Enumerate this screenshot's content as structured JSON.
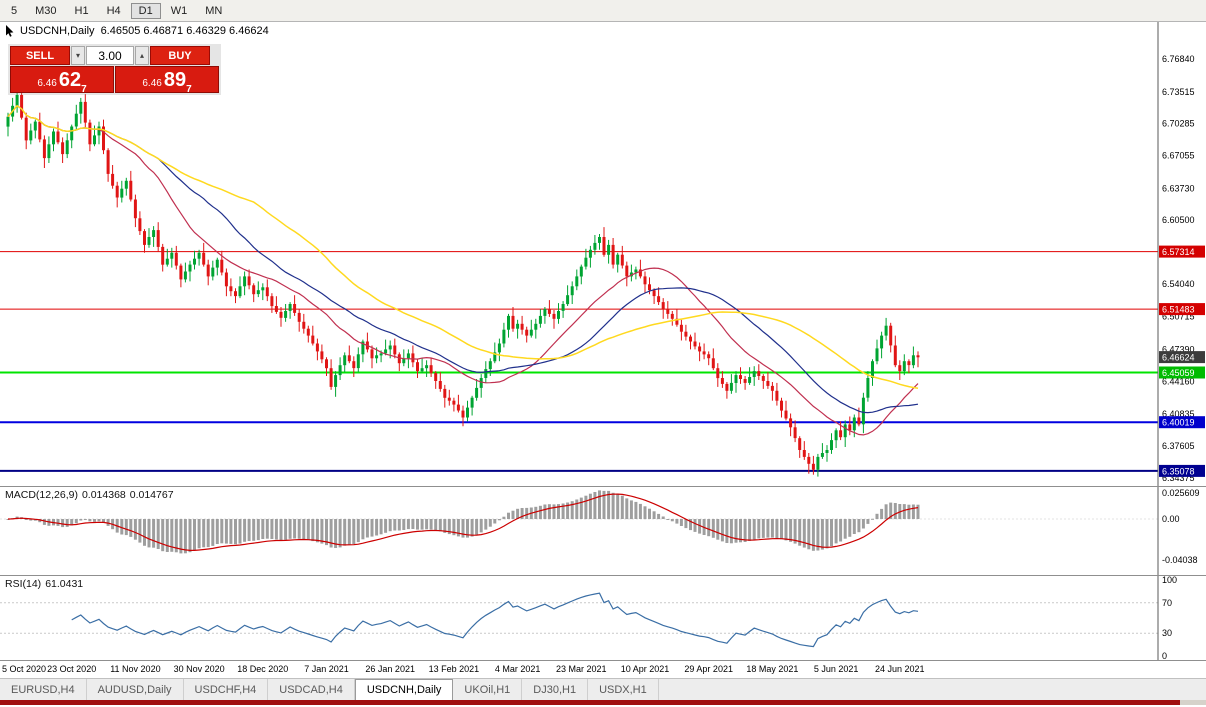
{
  "toolbar": {
    "timeframes": [
      {
        "label": "5",
        "active": false
      },
      {
        "label": "M30",
        "active": false
      },
      {
        "label": "H1",
        "active": false
      },
      {
        "label": "H4",
        "active": false
      },
      {
        "label": "D1",
        "active": true
      },
      {
        "label": "W1",
        "active": false
      },
      {
        "label": "MN",
        "active": false
      }
    ]
  },
  "chart_header": {
    "title": "USDCNH,Daily",
    "ohlc": "6.46505 6.46871 6.46329 6.46624"
  },
  "trade_panel": {
    "sell_label": "SELL",
    "buy_label": "BUY",
    "volume": "3.00",
    "sell_price_small": "6.46",
    "sell_price_big": "62",
    "sell_price_sup": "7",
    "buy_price_small": "6.46",
    "buy_price_big": "89",
    "buy_price_sup": "7"
  },
  "price_axis": {
    "ticks": [
      "6.76840",
      "6.73515",
      "6.70285",
      "6.67055",
      "6.63730",
      "6.60500",
      "6.57270",
      "6.54040",
      "6.50715",
      "6.47390",
      "6.44160",
      "6.40835",
      "6.37605",
      "6.34375"
    ]
  },
  "levels": [
    {
      "label": "6.57314",
      "price": 6.57314,
      "color": "#e00000",
      "badge": "#d40000",
      "width": 1
    },
    {
      "label": "6.51483",
      "price": 6.51483,
      "color": "#e00000",
      "badge": "#d40000",
      "width": 1
    },
    {
      "label": "6.45059",
      "price": 6.45059,
      "color": "#00e400",
      "badge": "#00bb00",
      "width": 2
    },
    {
      "label": "6.40019",
      "price": 6.40019,
      "color": "#0000e0",
      "badge": "#0000cc",
      "width": 2
    },
    {
      "label": "6.35078",
      "price": 6.35078,
      "color": "#000085",
      "badge": "#000090",
      "width": 2
    }
  ],
  "current_price": {
    "label": "6.46624",
    "value": 6.46624,
    "badge": "#3c3c3c"
  },
  "macd": {
    "title": "MACD(12,26,9)",
    "value_main": "0.014368",
    "value_signal": "0.014767",
    "ticks": [
      {
        "label": "0.025609",
        "value": 0.025609
      },
      {
        "label": "0.00",
        "value": 0
      },
      {
        "label": "-0.04038",
        "value": -0.04038
      }
    ],
    "range_top": 0.0316,
    "range_bottom": -0.0552
  },
  "rsi": {
    "title": "RSI(14)",
    "value": "61.0431",
    "ticks": [
      {
        "label": "100",
        "value": 100
      },
      {
        "label": "70",
        "value": 70
      },
      {
        "label": "30",
        "value": 30
      },
      {
        "label": "0",
        "value": 0
      }
    ],
    "level_lines": [
      70,
      30
    ]
  },
  "x_axis": {
    "labels": [
      {
        "text": "5 Oct 2020",
        "bar": 0
      },
      {
        "text": "23 Oct 2020",
        "bar": 14
      },
      {
        "text": "11 Nov 2020",
        "bar": 28
      },
      {
        "text": "30 Nov 2020",
        "bar": 42
      },
      {
        "text": "18 Dec 2020",
        "bar": 56
      },
      {
        "text": "7 Jan 2021",
        "bar": 70
      },
      {
        "text": "26 Jan 2021",
        "bar": 84
      },
      {
        "text": "13 Feb 2021",
        "bar": 98
      },
      {
        "text": "4 Mar 2021",
        "bar": 112
      },
      {
        "text": "23 Mar 2021",
        "bar": 126
      },
      {
        "text": "10 Apr 2021",
        "bar": 140
      },
      {
        "text": "29 Apr 2021",
        "bar": 154
      },
      {
        "text": "18 May 2021",
        "bar": 168
      },
      {
        "text": "5 Jun 2021",
        "bar": 182
      },
      {
        "text": "24 Jun 2021",
        "bar": 196
      }
    ]
  },
  "tabs": [
    {
      "label": "EURUSD,H4",
      "active": false
    },
    {
      "label": "AUDUSD,Daily",
      "active": false
    },
    {
      "label": "USDCHF,H4",
      "active": false
    },
    {
      "label": "USDCAD,H4",
      "active": false
    },
    {
      "label": "USDCNH,Daily",
      "active": true
    },
    {
      "label": "UKOil,H1",
      "active": false
    },
    {
      "label": "DJ30,H1",
      "active": false
    },
    {
      "label": "USDX,H1",
      "active": false
    }
  ],
  "colors": {
    "candle_up": "#00a432",
    "candle_down": "#e01515",
    "macd_hist": "#9e9e9e",
    "macd_signal": "#cc0000",
    "rsi_line": "#3a6ea5"
  },
  "chart_data": {
    "type": "candlestick",
    "symbol": "USDCNH",
    "timeframe": "Daily",
    "price_range": {
      "top": 6.806,
      "bottom": 6.3355
    },
    "first_open": 6.7,
    "wick_pattern": [
      0.004,
      0.008,
      0.003,
      0.01,
      0.005,
      0.007,
      0.002,
      0.009
    ],
    "ma": [
      {
        "period": 20,
        "color": "#c03050",
        "width": 1.2
      },
      {
        "period": 34,
        "color": "#20308c",
        "width": 1.2
      },
      {
        "period": 55,
        "color": "#ffd91f",
        "width": 1.5
      }
    ],
    "closes": [
      6.71,
      6.721,
      6.732,
      6.709,
      6.686,
      6.696,
      6.705,
      6.687,
      6.668,
      6.682,
      6.695,
      6.684,
      6.672,
      6.686,
      6.7,
      6.713,
      6.725,
      6.704,
      6.682,
      6.691,
      6.7,
      6.676,
      6.652,
      6.64,
      6.628,
      6.637,
      6.645,
      6.626,
      6.607,
      6.594,
      6.58,
      6.588,
      6.595,
      6.578,
      6.56,
      6.566,
      6.572,
      6.559,
      6.545,
      6.553,
      6.56,
      6.566,
      6.572,
      6.56,
      6.548,
      6.557,
      6.565,
      6.552,
      6.538,
      6.533,
      6.528,
      6.538,
      6.548,
      6.539,
      6.53,
      6.534,
      6.537,
      6.528,
      6.518,
      6.512,
      6.506,
      6.513,
      6.52,
      6.511,
      6.502,
      6.495,
      6.488,
      6.48,
      6.472,
      6.464,
      6.455,
      6.436,
      6.448,
      6.458,
      6.468,
      6.462,
      6.455,
      6.469,
      6.482,
      6.474,
      6.465,
      6.468,
      6.47,
      6.474,
      6.478,
      6.469,
      6.46,
      6.465,
      6.47,
      6.461,
      6.452,
      6.455,
      6.458,
      6.45,
      6.442,
      6.434,
      6.425,
      6.422,
      6.418,
      6.412,
      6.405,
      6.415,
      6.425,
      6.435,
      6.445,
      6.454,
      6.462,
      6.471,
      6.48,
      6.494,
      6.508,
      6.495,
      6.5,
      6.494,
      6.488,
      6.494,
      6.5,
      6.508,
      6.515,
      6.51,
      6.505,
      6.513,
      6.52,
      6.529,
      6.538,
      6.548,
      6.558,
      6.567,
      6.575,
      6.582,
      6.588,
      6.57,
      6.58,
      6.56,
      6.57,
      6.559,
      6.548,
      6.552,
      6.555,
      6.548,
      6.54,
      6.534,
      6.528,
      6.522,
      6.515,
      6.51,
      6.505,
      6.499,
      6.492,
      6.487,
      6.482,
      6.477,
      6.472,
      6.469,
      6.465,
      6.455,
      6.445,
      6.439,
      6.432,
      6.44,
      6.448,
      6.444,
      6.44,
      6.446,
      6.452,
      6.447,
      6.442,
      6.437,
      6.432,
      6.422,
      6.412,
      6.404,
      6.395,
      6.384,
      6.372,
      6.365,
      6.358,
      6.352,
      6.365,
      6.369,
      6.372,
      6.382,
      6.392,
      6.385,
      6.398,
      6.392,
      6.405,
      6.398,
      6.425,
      6.445,
      6.462,
      6.475,
      6.488,
      6.498,
      6.478,
      6.458,
      6.452,
      6.462,
      6.458,
      6.468,
      6.466
    ]
  }
}
